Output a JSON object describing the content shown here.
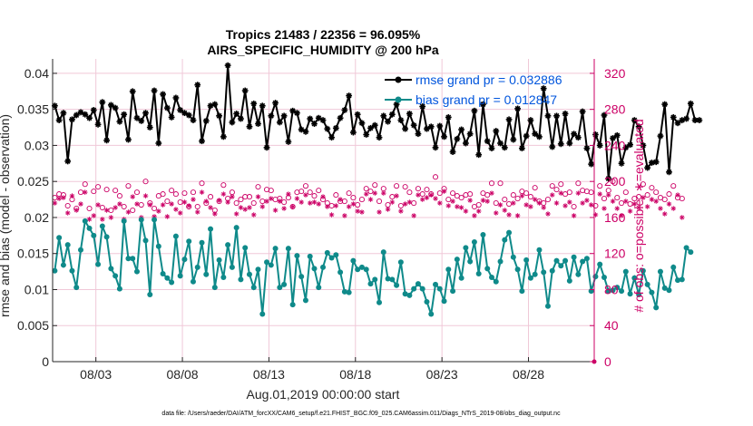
{
  "chart_data": {
    "type": "line",
    "title_line1": "Tropics 21483 / 22356 = 96.095%",
    "title_line2": "AIRS_SPECIFIC_HUMIDITY @ 200 hPa",
    "xlabel": "Aug.01,2019 00:00:00 start",
    "ylabel_left": "rmse and bias (model - observation)",
    "ylabel_right": "# of obs: o=possible; ∗=evaluated",
    "footer": "data file: /Users/raeder/DAI/ATM_forcXX/CAM6_setup/f.e21.FHIST_BGC.f09_025.CAM6assim.011/Diags_NTrS_2019-08/obs_diag_output.nc",
    "xlim": [
      0.5,
      31.8
    ],
    "ylim_left": [
      0,
      0.042
    ],
    "ylim_right": [
      0,
      336
    ],
    "x_ticks": [
      {
        "value": 3,
        "label": "08/03"
      },
      {
        "value": 8,
        "label": "08/08"
      },
      {
        "value": 13,
        "label": "08/13"
      },
      {
        "value": 18,
        "label": "08/18"
      },
      {
        "value": 23,
        "label": "08/23"
      },
      {
        "value": 28,
        "label": "08/28"
      }
    ],
    "y_ticks_left": [
      "0",
      "0.005",
      "0.01",
      "0.015",
      "0.02",
      "0.025",
      "0.03",
      "0.035",
      "0.04"
    ],
    "y_ticks_left_values": [
      0,
      0.005,
      0.01,
      0.015,
      0.02,
      0.025,
      0.03,
      0.035,
      0.04
    ],
    "y_ticks_right": [
      "0",
      "40",
      "80",
      "120",
      "160",
      "200",
      "240",
      "280",
      "320"
    ],
    "y_ticks_right_values": [
      0,
      40,
      80,
      120,
      160,
      200,
      240,
      280,
      320
    ],
    "x_start": 0.625,
    "x_step": 0.25,
    "series": [
      {
        "name": "rmse",
        "legend": "rmse grand pr = 0.032886",
        "color": "#000000",
        "values": [
          0.0355,
          0.0335,
          0.0345,
          0.0278,
          0.0336,
          0.0342,
          0.0346,
          0.0343,
          0.0338,
          0.0349,
          0.0329,
          0.036,
          0.0307,
          0.0356,
          0.0352,
          0.0333,
          0.0343,
          0.0308,
          0.0375,
          0.0338,
          0.0334,
          0.0345,
          0.0325,
          0.0376,
          0.0303,
          0.0371,
          0.0352,
          0.0339,
          0.0366,
          0.0349,
          0.0345,
          0.0342,
          0.0335,
          0.0384,
          0.0306,
          0.0334,
          0.0355,
          0.0357,
          0.0341,
          0.0312,
          0.0411,
          0.0332,
          0.0344,
          0.0337,
          0.0376,
          0.0326,
          0.0358,
          0.033,
          0.0355,
          0.0297,
          0.0341,
          0.0359,
          0.0332,
          0.0341,
          0.0305,
          0.0348,
          0.0345,
          0.0322,
          0.0319,
          0.0337,
          0.033,
          0.0338,
          0.0335,
          0.0323,
          0.0311,
          0.0324,
          0.0338,
          0.0349,
          0.0369,
          0.0318,
          0.0343,
          0.0331,
          0.0315,
          0.0324,
          0.0328,
          0.0311,
          0.0341,
          0.0333,
          0.0343,
          0.0357,
          0.0335,
          0.0323,
          0.0344,
          0.0328,
          0.0316,
          0.0354,
          0.0323,
          0.0326,
          0.0297,
          0.0327,
          0.0312,
          0.0339,
          0.0291,
          0.0309,
          0.0322,
          0.0303,
          0.0316,
          0.0348,
          0.0287,
          0.0357,
          0.0306,
          0.0296,
          0.032,
          0.0303,
          0.0297,
          0.0336,
          0.0308,
          0.0351,
          0.0296,
          0.0313,
          0.0335,
          0.0316,
          0.0312,
          0.0379,
          0.0341,
          0.0298,
          0.0341,
          0.0302,
          0.0344,
          0.0303,
          0.0316,
          0.0311,
          0.0347,
          0.0296,
          0.0274,
          0.0315,
          0.03,
          0.0342,
          0.0254,
          0.031,
          0.0314,
          0.0275,
          0.0297,
          0.0301,
          0.0335,
          0.0326,
          0.03,
          0.0269,
          0.0276,
          0.0277,
          0.0313,
          0.0357,
          0.0263,
          0.0339,
          0.0331,
          0.0335,
          0.0337,
          0.0358,
          0.0335,
          0.0335
        ]
      },
      {
        "name": "bias",
        "legend": "bias grand pr = 0.012847",
        "color": "#0f8a8a",
        "values": [
          0.0126,
          0.0172,
          0.0134,
          0.0162,
          0.0126,
          0.0103,
          0.0155,
          0.0195,
          0.0185,
          0.0175,
          0.0135,
          0.0188,
          0.0173,
          0.0129,
          0.0119,
          0.0101,
          0.0195,
          0.0143,
          0.0143,
          0.0125,
          0.0197,
          0.0168,
          0.0093,
          0.0197,
          0.016,
          0.0122,
          0.0116,
          0.011,
          0.0174,
          0.0119,
          0.0142,
          0.0167,
          0.0111,
          0.0131,
          0.0165,
          0.0121,
          0.0184,
          0.0103,
          0.0141,
          0.0117,
          0.0162,
          0.0131,
          0.0186,
          0.0114,
          0.0158,
          0.0121,
          0.0103,
          0.0128,
          0.0066,
          0.0138,
          0.0134,
          0.0157,
          0.0103,
          0.0107,
          0.0157,
          0.0079,
          0.0147,
          0.0118,
          0.0085,
          0.0146,
          0.0129,
          0.0103,
          0.0131,
          0.0151,
          0.0144,
          0.0148,
          0.0124,
          0.0097,
          0.0096,
          0.014,
          0.0128,
          0.0131,
          0.0128,
          0.0108,
          0.0114,
          0.0082,
          0.0152,
          0.0115,
          0.0114,
          0.0106,
          0.0138,
          0.0094,
          0.0092,
          0.0101,
          0.0108,
          0.0101,
          0.0083,
          0.0066,
          0.0107,
          0.0101,
          0.0084,
          0.0128,
          0.0098,
          0.0142,
          0.0116,
          0.0158,
          0.0139,
          0.0166,
          0.0122,
          0.0176,
          0.0129,
          0.0117,
          0.0111,
          0.0139,
          0.0169,
          0.0179,
          0.0145,
          0.0128,
          0.0098,
          0.0141,
          0.0116,
          0.0121,
          0.0155,
          0.0124,
          0.0077,
          0.0126,
          0.014,
          0.0133,
          0.014,
          0.0112,
          0.0145,
          0.0121,
          0.0139,
          0.0143,
          0.0098,
          0.0118,
          0.0135,
          0.0117,
          0.0098,
          0.0099,
          0.0103,
          0.0098,
          0.0125,
          0.0094,
          0.0116,
          0.0093,
          0.0126,
          0.0107,
          0.0096,
          0.0075,
          0.0125,
          0.0102,
          0.0099,
          0.0131,
          0.0113,
          0.0114,
          0.0158,
          0.0152
        ]
      },
      {
        "name": "obs possible",
        "color": "#cc0066",
        "values": [
          182,
          186,
          185,
          173,
          180,
          170,
          188,
          197,
          170,
          189,
          194,
          171,
          191,
          168,
          190,
          184,
          172,
          195,
          168,
          188,
          174,
          200,
          176,
          170,
          184,
          186,
          178,
          190,
          186,
          177,
          187,
          172,
          188,
          172,
          198,
          176,
          183,
          168,
          178,
          196,
          181,
          188,
          176,
          180,
          183,
          183,
          176,
          194,
          178,
          191,
          190,
          180,
          181,
          177,
          182,
          172,
          188,
          189,
          195,
          188,
          184,
          190,
          180,
          176,
          173,
          185,
          178,
          178,
          187,
          182,
          174,
          180,
          192,
          189,
          196,
          178,
          192,
          174,
          183,
          195,
          173,
          194,
          188,
          176,
          192,
          186,
          191,
          186,
          205,
          187,
          192,
          180,
          187,
          184,
          182,
          185,
          186,
          172,
          174,
          187,
          185,
          198,
          176,
          198,
          180,
          175,
          185,
          181,
          189,
          187,
          183,
          193,
          178,
          176,
          180,
          195,
          191,
          197,
          186,
          188,
          172,
          198,
          190,
          189,
          188,
          173,
          195,
          181,
          190,
          200,
          182,
          176,
          188,
          175,
          181,
          183,
          197,
          185,
          193,
          188,
          182,
          180,
          186,
          195,
          182,
          181
        ]
      },
      {
        "name": "obs evaluated",
        "color": "#cc0066",
        "values": [
          176,
          181,
          182,
          165,
          184,
          168,
          175,
          188,
          158,
          162,
          174,
          158,
          168,
          160,
          171,
          175,
          158,
          166,
          183,
          175,
          160,
          184,
          174,
          161,
          167,
          174,
          161,
          175,
          169,
          165,
          177,
          173,
          180,
          166,
          188,
          178,
          171,
          164,
          179,
          186,
          177,
          183,
          164,
          171,
          169,
          171,
          163,
          183,
          172,
          178,
          181,
          168,
          178,
          170,
          186,
          172,
          181,
          177,
          185,
          176,
          177,
          175,
          183,
          172,
          163,
          173,
          180,
          162,
          172,
          175,
          167,
          166,
          186,
          180,
          187,
          166,
          187,
          169,
          177,
          184,
          167,
          175,
          177,
          162,
          185,
          180,
          182,
          185,
          181,
          176,
          189,
          173,
          178,
          172,
          171,
          167,
          179,
          162,
          167,
          179,
          178,
          187,
          165,
          174,
          168,
          163,
          176,
          162,
          184,
          174,
          172,
          180,
          176,
          171,
          164,
          185,
          176,
          187,
          173,
          177,
          162,
          187,
          176,
          179,
          174,
          163,
          186,
          170,
          185,
          178,
          170,
          162,
          178,
          167,
          175,
          171,
          182,
          172,
          180,
          178,
          170,
          164,
          175,
          170,
          185,
          160
        ]
      }
    ]
  }
}
